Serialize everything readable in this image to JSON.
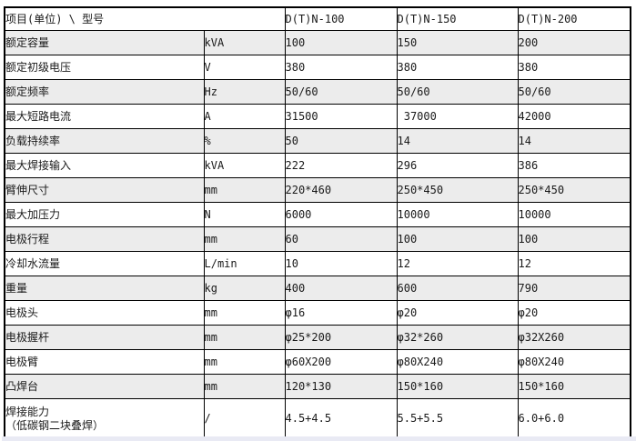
{
  "table": {
    "header": {
      "item_label": "项目(单位) \\ 型号",
      "models": [
        "D(T)N-100",
        "D(T)N-150",
        "D(T)N-200"
      ]
    },
    "rows": [
      {
        "item": "额定容量",
        "unit": "kVA",
        "values": [
          "100",
          "150",
          "200"
        ]
      },
      {
        "item": "额定初级电压",
        "unit": "V",
        "values": [
          "380",
          "380",
          "380"
        ]
      },
      {
        "item": "额定频率",
        "unit": "Hz",
        "values": [
          "50/60",
          "50/60",
          "50/60"
        ]
      },
      {
        "item": "最大短路电流",
        "unit": "A",
        "values": [
          "31500",
          " 37000",
          "42000"
        ]
      },
      {
        "item": "负载持续率",
        "unit": "%",
        "values": [
          "50",
          "14",
          "14"
        ]
      },
      {
        "item": "最大焊接输入",
        "unit": "kVA",
        "values": [
          "222",
          "296",
          "386"
        ]
      },
      {
        "item": "臂伸尺寸",
        "unit": "mm",
        "values": [
          "220*460",
          "250*450",
          "250*450"
        ]
      },
      {
        "item": "最大加压力",
        "unit": "N",
        "values": [
          "6000",
          "10000",
          "10000"
        ]
      },
      {
        "item": "电极行程",
        "unit": "mm",
        "values": [
          "60",
          "100",
          "100"
        ]
      },
      {
        "item": "冷却水流量",
        "unit": "L/min",
        "values": [
          "10",
          "12",
          "12"
        ]
      },
      {
        "item": "重量",
        "unit": "kg",
        "values": [
          "400",
          "600",
          "790"
        ]
      },
      {
        "item": "电极头",
        "unit": "mm",
        "values": [
          "φ16",
          "φ20",
          "φ20"
        ]
      },
      {
        "item": "电极握杆",
        "unit": "mm",
        "values": [
          "φ25*200",
          "φ32*260",
          "φ32X260"
        ]
      },
      {
        "item": "电极臂",
        "unit": "mm",
        "values": [
          "φ60X200",
          "φ80X240",
          "φ80X240"
        ]
      },
      {
        "item": "凸焊台",
        "unit": "mm",
        "values": [
          "120*130",
          "150*160",
          "150*160"
        ]
      },
      {
        "item": "焊接能力\n（低碳钢二块叠焊）",
        "unit": "/",
        "values": [
          "4.5+4.5",
          "5.5+5.5",
          "6.0+6.0"
        ]
      }
    ],
    "colors": {
      "stripe": "#ececec",
      "border": "#000000",
      "footer_strip": "#e9eaf4"
    }
  }
}
